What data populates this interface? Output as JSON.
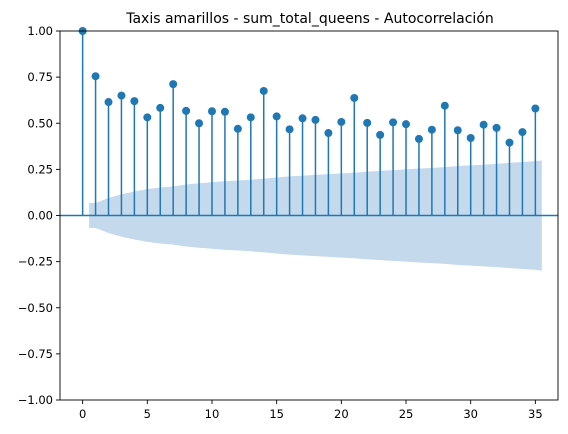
{
  "chart_data": {
    "type": "stem",
    "title": "Taxis amarillos - sum_total_queens - Autocorrelación",
    "xlabel": "",
    "ylabel": "",
    "xlim": [
      -1.75,
      36.75
    ],
    "ylim": [
      -1.0,
      1.0
    ],
    "xticks": [
      0,
      5,
      10,
      15,
      20,
      25,
      30,
      35
    ],
    "xtick_labels": [
      "0",
      "5",
      "10",
      "15",
      "20",
      "25",
      "30",
      "35"
    ],
    "yticks": [
      1.0,
      0.75,
      0.5,
      0.25,
      0.0,
      -0.25,
      -0.5,
      -0.75,
      -1.0
    ],
    "ytick_labels": [
      "1.00",
      "0.75",
      "0.50",
      "0.25",
      "0.00",
      "−0.25",
      "−0.50",
      "−0.75",
      "−1.00"
    ],
    "grid": false,
    "legend": "none",
    "series": [
      {
        "lags": [
          0,
          1,
          2,
          3,
          4,
          5,
          6,
          7,
          8,
          9,
          10,
          11,
          12,
          13,
          14,
          15,
          16,
          17,
          18,
          19,
          20,
          21,
          22,
          23,
          24,
          25,
          26,
          27,
          28,
          29,
          30,
          31,
          32,
          33,
          34,
          35
        ],
        "values": [
          1.0,
          0.755,
          0.615,
          0.65,
          0.62,
          0.532,
          0.583,
          0.712,
          0.567,
          0.5,
          0.565,
          0.562,
          0.47,
          0.532,
          0.675,
          0.537,
          0.467,
          0.527,
          0.518,
          0.447,
          0.507,
          0.637,
          0.502,
          0.437,
          0.505,
          0.495,
          0.415,
          0.465,
          0.595,
          0.462,
          0.42,
          0.492,
          0.475,
          0.395,
          0.452,
          0.58
        ]
      }
    ],
    "confidence_band": {
      "lags": [
        0.5,
        1,
        2,
        3,
        4,
        5,
        6,
        7,
        8,
        9,
        10,
        11,
        12,
        13,
        14,
        15,
        16,
        17,
        18,
        19,
        20,
        21,
        22,
        23,
        24,
        25,
        26,
        27,
        28,
        29,
        30,
        31,
        32,
        33,
        34,
        35,
        35.5
      ],
      "upper": [
        0.068,
        0.068,
        0.095,
        0.115,
        0.13,
        0.143,
        0.152,
        0.158,
        0.168,
        0.175,
        0.18,
        0.186,
        0.19,
        0.194,
        0.2,
        0.206,
        0.212,
        0.216,
        0.22,
        0.224,
        0.228,
        0.232,
        0.238,
        0.242,
        0.246,
        0.25,
        0.255,
        0.258,
        0.262,
        0.268,
        0.272,
        0.276,
        0.28,
        0.285,
        0.29,
        0.295,
        0.298
      ]
    },
    "colors": {
      "stem": "#1f77b4",
      "band": "#c5d9ec",
      "zero_line": "#1f77b4"
    }
  }
}
